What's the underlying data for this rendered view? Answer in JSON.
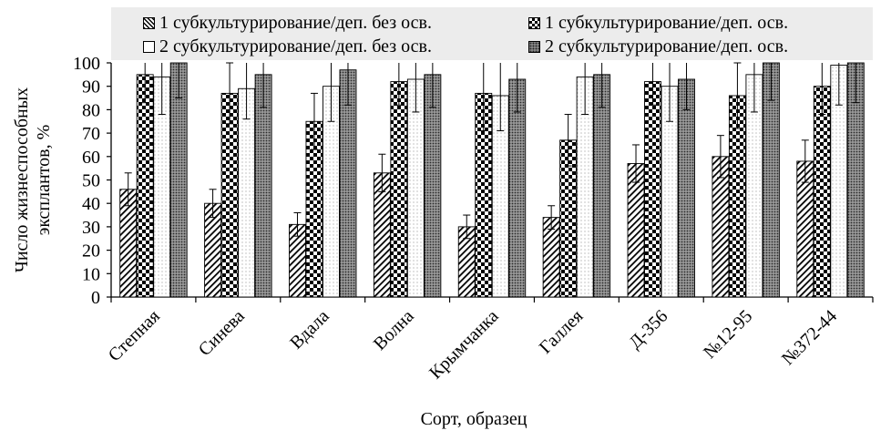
{
  "chart_data": {
    "type": "bar",
    "categories": [
      "Степная",
      "Синева",
      "Вдала",
      "Волна",
      "Крымчанка",
      "Галлея",
      "Д-356",
      "№12-95",
      "№372-44"
    ],
    "series": [
      {
        "name": "1 субкультурирование/деп. без осв.",
        "values": [
          46,
          40,
          31,
          53,
          30,
          34,
          57,
          60,
          58
        ],
        "errors": [
          7,
          6,
          5,
          8,
          5,
          5,
          8,
          9,
          9
        ]
      },
      {
        "name": "1 субкультурирование/деп. осв.",
        "values": [
          95,
          87,
          75,
          92,
          87,
          67,
          92,
          86,
          90
        ],
        "errors": [
          12,
          13,
          12,
          10,
          16,
          11,
          10,
          14,
          12
        ]
      },
      {
        "name": "2 субкультурирование/деп. без осв.",
        "values": [
          94,
          89,
          90,
          93,
          86,
          94,
          90,
          95,
          99
        ],
        "errors": [
          16,
          13,
          15,
          14,
          15,
          16,
          15,
          16,
          17
        ]
      },
      {
        "name": "2 субкультурирование/деп. осв.",
        "values": [
          100,
          95,
          97,
          95,
          93,
          95,
          93,
          100,
          100
        ],
        "errors": [
          15,
          14,
          15,
          14,
          14,
          14,
          13,
          16,
          17
        ]
      }
    ],
    "xlabel": "Сорт, образец",
    "ylabel": "Число жизнеспособных эксплантов, %",
    "ylim": [
      0,
      100
    ],
    "yticks": [
      "0",
      "10",
      "20",
      "30",
      "40",
      "50",
      "60",
      "70",
      "80",
      "90",
      "100"
    ],
    "grid": false,
    "legend_position": "top",
    "patterns": [
      "diagonal-stripes",
      "checkerboard",
      "dotted-white",
      "dense-dots-gray"
    ]
  }
}
